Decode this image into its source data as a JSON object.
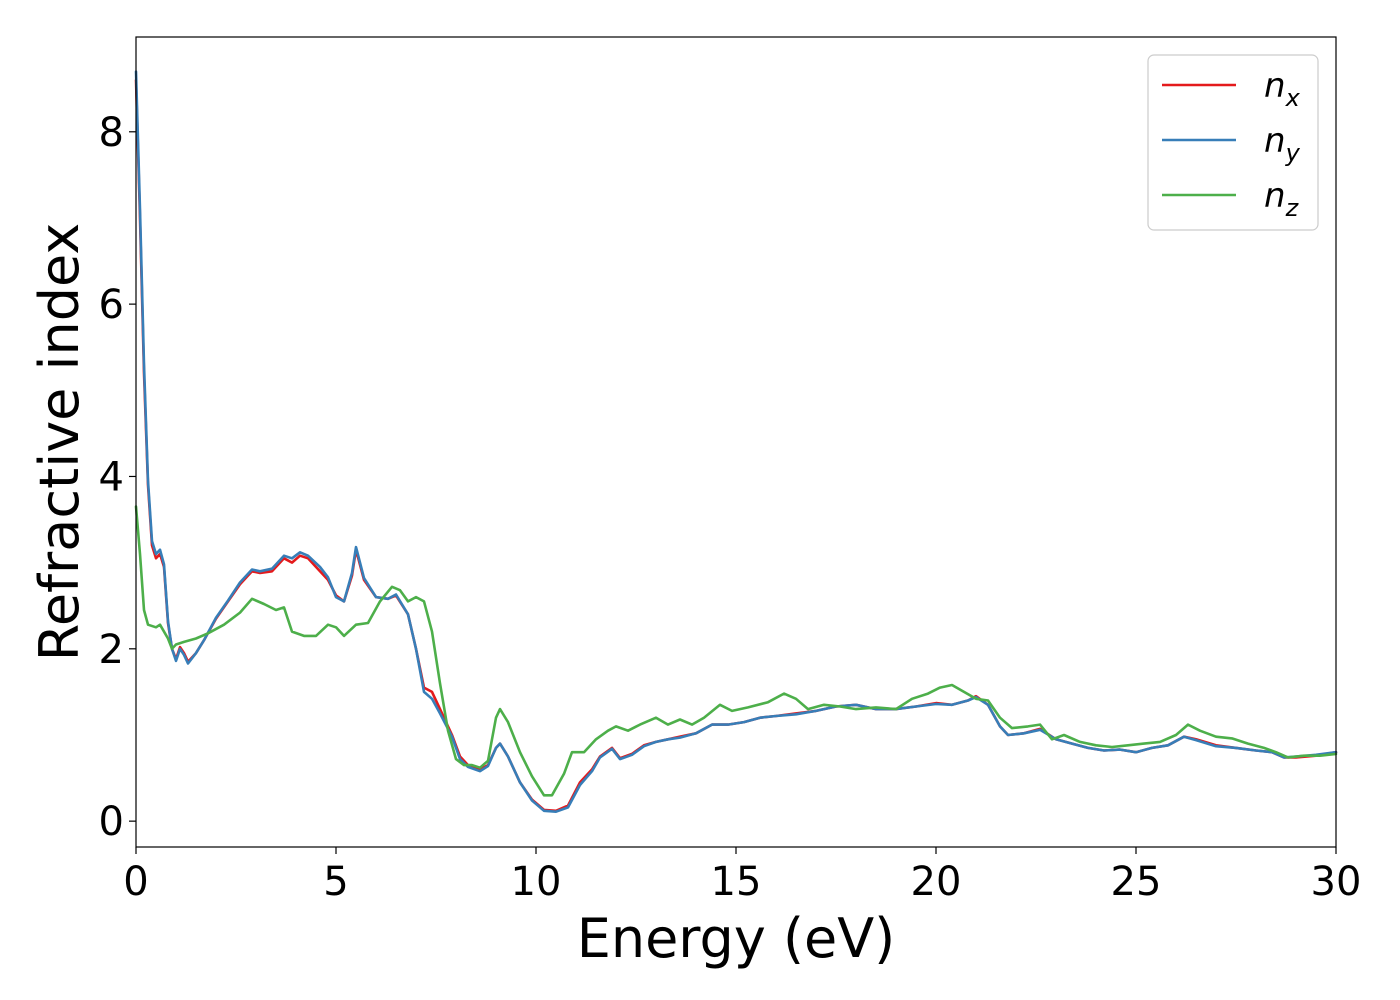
{
  "chart_data": {
    "type": "line",
    "xlabel": "Energy (eV)",
    "ylabel": "Refractive index",
    "xlim": [
      0,
      30
    ],
    "ylim": [
      -0.3,
      9.1
    ],
    "xticks": [
      0,
      5,
      10,
      15,
      20,
      25,
      30
    ],
    "yticks": [
      0,
      2,
      4,
      6,
      8
    ],
    "grid": false,
    "legend_position": "top-right",
    "series": [
      {
        "name": "n_x",
        "label_base": "n",
        "label_sub": "x",
        "color": "#e41a1c",
        "points": [
          [
            0.0,
            8.6
          ],
          [
            0.1,
            7.0
          ],
          [
            0.2,
            5.2
          ],
          [
            0.3,
            3.9
          ],
          [
            0.4,
            3.2
          ],
          [
            0.5,
            3.05
          ],
          [
            0.6,
            3.1
          ],
          [
            0.7,
            2.95
          ],
          [
            0.8,
            2.3
          ],
          [
            0.9,
            2.0
          ],
          [
            1.0,
            1.88
          ],
          [
            1.1,
            2.02
          ],
          [
            1.2,
            1.95
          ],
          [
            1.3,
            1.85
          ],
          [
            1.5,
            1.95
          ],
          [
            1.7,
            2.1
          ],
          [
            2.0,
            2.35
          ],
          [
            2.3,
            2.55
          ],
          [
            2.6,
            2.75
          ],
          [
            2.9,
            2.9
          ],
          [
            3.1,
            2.88
          ],
          [
            3.4,
            2.9
          ],
          [
            3.7,
            3.05
          ],
          [
            3.9,
            3.0
          ],
          [
            4.1,
            3.08
          ],
          [
            4.3,
            3.05
          ],
          [
            4.6,
            2.9
          ],
          [
            4.8,
            2.8
          ],
          [
            5.0,
            2.62
          ],
          [
            5.2,
            2.55
          ],
          [
            5.4,
            2.85
          ],
          [
            5.5,
            3.15
          ],
          [
            5.7,
            2.8
          ],
          [
            6.0,
            2.6
          ],
          [
            6.3,
            2.58
          ],
          [
            6.5,
            2.62
          ],
          [
            6.8,
            2.4
          ],
          [
            7.0,
            2.0
          ],
          [
            7.2,
            1.55
          ],
          [
            7.4,
            1.5
          ],
          [
            7.6,
            1.3
          ],
          [
            7.9,
            1.0
          ],
          [
            8.1,
            0.75
          ],
          [
            8.3,
            0.65
          ],
          [
            8.6,
            0.6
          ],
          [
            8.8,
            0.65
          ],
          [
            9.0,
            0.85
          ],
          [
            9.1,
            0.9
          ],
          [
            9.3,
            0.75
          ],
          [
            9.6,
            0.45
          ],
          [
            9.9,
            0.25
          ],
          [
            10.2,
            0.13
          ],
          [
            10.5,
            0.12
          ],
          [
            10.8,
            0.18
          ],
          [
            11.1,
            0.45
          ],
          [
            11.4,
            0.6
          ],
          [
            11.6,
            0.75
          ],
          [
            11.9,
            0.85
          ],
          [
            12.1,
            0.73
          ],
          [
            12.4,
            0.78
          ],
          [
            12.7,
            0.88
          ],
          [
            13.0,
            0.92
          ],
          [
            13.3,
            0.95
          ],
          [
            13.6,
            0.98
          ],
          [
            14.0,
            1.02
          ],
          [
            14.4,
            1.12
          ],
          [
            14.8,
            1.12
          ],
          [
            15.2,
            1.15
          ],
          [
            15.6,
            1.2
          ],
          [
            16.0,
            1.22
          ],
          [
            16.5,
            1.25
          ],
          [
            17.0,
            1.28
          ],
          [
            17.5,
            1.33
          ],
          [
            18.0,
            1.35
          ],
          [
            18.5,
            1.3
          ],
          [
            19.0,
            1.3
          ],
          [
            19.5,
            1.33
          ],
          [
            20.0,
            1.37
          ],
          [
            20.4,
            1.35
          ],
          [
            20.8,
            1.4
          ],
          [
            21.0,
            1.45
          ],
          [
            21.3,
            1.35
          ],
          [
            21.6,
            1.1
          ],
          [
            21.8,
            1.0
          ],
          [
            22.2,
            1.02
          ],
          [
            22.6,
            1.07
          ],
          [
            23.0,
            0.95
          ],
          [
            23.4,
            0.9
          ],
          [
            23.8,
            0.85
          ],
          [
            24.2,
            0.82
          ],
          [
            24.6,
            0.83
          ],
          [
            25.0,
            0.8
          ],
          [
            25.4,
            0.85
          ],
          [
            25.8,
            0.88
          ],
          [
            26.2,
            0.98
          ],
          [
            26.5,
            0.95
          ],
          [
            27.0,
            0.88
          ],
          [
            27.5,
            0.85
          ],
          [
            28.0,
            0.82
          ],
          [
            28.4,
            0.8
          ],
          [
            28.7,
            0.74
          ],
          [
            29.0,
            0.74
          ],
          [
            29.5,
            0.76
          ],
          [
            30.0,
            0.8
          ]
        ]
      },
      {
        "name": "n_y",
        "label_base": "n",
        "label_sub": "y",
        "color": "#377eb8",
        "points": [
          [
            0.0,
            8.7
          ],
          [
            0.1,
            7.1
          ],
          [
            0.2,
            5.3
          ],
          [
            0.3,
            3.95
          ],
          [
            0.4,
            3.25
          ],
          [
            0.5,
            3.1
          ],
          [
            0.6,
            3.15
          ],
          [
            0.7,
            2.98
          ],
          [
            0.8,
            2.32
          ],
          [
            0.9,
            2.0
          ],
          [
            1.0,
            1.86
          ],
          [
            1.1,
            2.0
          ],
          [
            1.2,
            1.93
          ],
          [
            1.3,
            1.83
          ],
          [
            1.5,
            1.95
          ],
          [
            1.7,
            2.1
          ],
          [
            2.0,
            2.36
          ],
          [
            2.3,
            2.56
          ],
          [
            2.6,
            2.77
          ],
          [
            2.9,
            2.92
          ],
          [
            3.1,
            2.9
          ],
          [
            3.4,
            2.93
          ],
          [
            3.7,
            3.08
          ],
          [
            3.9,
            3.05
          ],
          [
            4.1,
            3.12
          ],
          [
            4.3,
            3.08
          ],
          [
            4.6,
            2.95
          ],
          [
            4.8,
            2.83
          ],
          [
            5.0,
            2.6
          ],
          [
            5.2,
            2.55
          ],
          [
            5.4,
            2.88
          ],
          [
            5.5,
            3.18
          ],
          [
            5.7,
            2.82
          ],
          [
            6.0,
            2.6
          ],
          [
            6.3,
            2.58
          ],
          [
            6.5,
            2.63
          ],
          [
            6.8,
            2.4
          ],
          [
            7.0,
            2.0
          ],
          [
            7.2,
            1.5
          ],
          [
            7.4,
            1.42
          ],
          [
            7.6,
            1.25
          ],
          [
            7.9,
            0.98
          ],
          [
            8.1,
            0.72
          ],
          [
            8.3,
            0.63
          ],
          [
            8.6,
            0.58
          ],
          [
            8.8,
            0.64
          ],
          [
            9.0,
            0.85
          ],
          [
            9.1,
            0.9
          ],
          [
            9.3,
            0.75
          ],
          [
            9.6,
            0.45
          ],
          [
            9.9,
            0.24
          ],
          [
            10.2,
            0.12
          ],
          [
            10.5,
            0.11
          ],
          [
            10.8,
            0.16
          ],
          [
            11.1,
            0.42
          ],
          [
            11.4,
            0.58
          ],
          [
            11.6,
            0.74
          ],
          [
            11.9,
            0.84
          ],
          [
            12.1,
            0.72
          ],
          [
            12.4,
            0.77
          ],
          [
            12.7,
            0.87
          ],
          [
            13.0,
            0.92
          ],
          [
            13.3,
            0.95
          ],
          [
            13.6,
            0.97
          ],
          [
            14.0,
            1.02
          ],
          [
            14.4,
            1.12
          ],
          [
            14.8,
            1.12
          ],
          [
            15.2,
            1.15
          ],
          [
            15.6,
            1.2
          ],
          [
            16.0,
            1.22
          ],
          [
            16.5,
            1.24
          ],
          [
            17.0,
            1.28
          ],
          [
            17.5,
            1.33
          ],
          [
            18.0,
            1.35
          ],
          [
            18.5,
            1.3
          ],
          [
            19.0,
            1.3
          ],
          [
            19.5,
            1.33
          ],
          [
            20.0,
            1.36
          ],
          [
            20.4,
            1.35
          ],
          [
            20.8,
            1.4
          ],
          [
            21.0,
            1.44
          ],
          [
            21.3,
            1.35
          ],
          [
            21.6,
            1.1
          ],
          [
            21.8,
            1.0
          ],
          [
            22.2,
            1.02
          ],
          [
            22.6,
            1.06
          ],
          [
            23.0,
            0.95
          ],
          [
            23.4,
            0.9
          ],
          [
            23.8,
            0.85
          ],
          [
            24.2,
            0.82
          ],
          [
            24.6,
            0.83
          ],
          [
            25.0,
            0.8
          ],
          [
            25.4,
            0.85
          ],
          [
            25.8,
            0.88
          ],
          [
            26.2,
            0.98
          ],
          [
            26.5,
            0.94
          ],
          [
            27.0,
            0.87
          ],
          [
            27.5,
            0.85
          ],
          [
            28.0,
            0.82
          ],
          [
            28.4,
            0.8
          ],
          [
            28.7,
            0.74
          ],
          [
            29.0,
            0.75
          ],
          [
            29.5,
            0.77
          ],
          [
            30.0,
            0.8
          ]
        ]
      },
      {
        "name": "n_z",
        "label_base": "n",
        "label_sub": "z",
        "color": "#4daf4a",
        "points": [
          [
            0.0,
            3.65
          ],
          [
            0.1,
            3.1
          ],
          [
            0.2,
            2.45
          ],
          [
            0.3,
            2.28
          ],
          [
            0.5,
            2.25
          ],
          [
            0.6,
            2.28
          ],
          [
            0.8,
            2.12
          ],
          [
            0.9,
            2.0
          ],
          [
            1.0,
            2.05
          ],
          [
            1.2,
            2.08
          ],
          [
            1.5,
            2.12
          ],
          [
            1.8,
            2.18
          ],
          [
            2.2,
            2.28
          ],
          [
            2.6,
            2.42
          ],
          [
            2.9,
            2.58
          ],
          [
            3.2,
            2.52
          ],
          [
            3.5,
            2.45
          ],
          [
            3.7,
            2.48
          ],
          [
            3.9,
            2.2
          ],
          [
            4.2,
            2.15
          ],
          [
            4.5,
            2.15
          ],
          [
            4.8,
            2.28
          ],
          [
            5.0,
            2.25
          ],
          [
            5.2,
            2.15
          ],
          [
            5.5,
            2.28
          ],
          [
            5.8,
            2.3
          ],
          [
            6.1,
            2.55
          ],
          [
            6.4,
            2.72
          ],
          [
            6.6,
            2.68
          ],
          [
            6.8,
            2.55
          ],
          [
            7.0,
            2.6
          ],
          [
            7.2,
            2.55
          ],
          [
            7.4,
            2.2
          ],
          [
            7.6,
            1.6
          ],
          [
            7.8,
            1.05
          ],
          [
            8.0,
            0.72
          ],
          [
            8.2,
            0.65
          ],
          [
            8.4,
            0.65
          ],
          [
            8.6,
            0.62
          ],
          [
            8.8,
            0.7
          ],
          [
            9.0,
            1.2
          ],
          [
            9.1,
            1.3
          ],
          [
            9.3,
            1.15
          ],
          [
            9.6,
            0.8
          ],
          [
            9.9,
            0.52
          ],
          [
            10.2,
            0.3
          ],
          [
            10.4,
            0.3
          ],
          [
            10.7,
            0.55
          ],
          [
            10.9,
            0.8
          ],
          [
            11.2,
            0.8
          ],
          [
            11.5,
            0.95
          ],
          [
            11.8,
            1.05
          ],
          [
            12.0,
            1.1
          ],
          [
            12.3,
            1.05
          ],
          [
            12.6,
            1.12
          ],
          [
            13.0,
            1.2
          ],
          [
            13.3,
            1.12
          ],
          [
            13.6,
            1.18
          ],
          [
            13.9,
            1.12
          ],
          [
            14.2,
            1.2
          ],
          [
            14.6,
            1.35
          ],
          [
            14.9,
            1.28
          ],
          [
            15.3,
            1.32
          ],
          [
            15.8,
            1.38
          ],
          [
            16.2,
            1.48
          ],
          [
            16.5,
            1.42
          ],
          [
            16.8,
            1.3
          ],
          [
            17.2,
            1.35
          ],
          [
            17.6,
            1.33
          ],
          [
            18.0,
            1.3
          ],
          [
            18.5,
            1.32
          ],
          [
            19.0,
            1.3
          ],
          [
            19.4,
            1.42
          ],
          [
            19.8,
            1.48
          ],
          [
            20.1,
            1.55
          ],
          [
            20.4,
            1.58
          ],
          [
            20.7,
            1.5
          ],
          [
            21.0,
            1.42
          ],
          [
            21.3,
            1.4
          ],
          [
            21.6,
            1.2
          ],
          [
            21.9,
            1.08
          ],
          [
            22.3,
            1.1
          ],
          [
            22.6,
            1.12
          ],
          [
            22.9,
            0.95
          ],
          [
            23.2,
            1.0
          ],
          [
            23.6,
            0.92
          ],
          [
            24.0,
            0.88
          ],
          [
            24.4,
            0.86
          ],
          [
            24.8,
            0.88
          ],
          [
            25.2,
            0.9
          ],
          [
            25.6,
            0.92
          ],
          [
            26.0,
            1.0
          ],
          [
            26.3,
            1.12
          ],
          [
            26.6,
            1.05
          ],
          [
            27.0,
            0.98
          ],
          [
            27.4,
            0.96
          ],
          [
            27.8,
            0.9
          ],
          [
            28.2,
            0.85
          ],
          [
            28.5,
            0.8
          ],
          [
            28.8,
            0.74
          ],
          [
            29.2,
            0.76
          ],
          [
            29.6,
            0.76
          ],
          [
            30.0,
            0.78
          ]
        ]
      }
    ]
  }
}
